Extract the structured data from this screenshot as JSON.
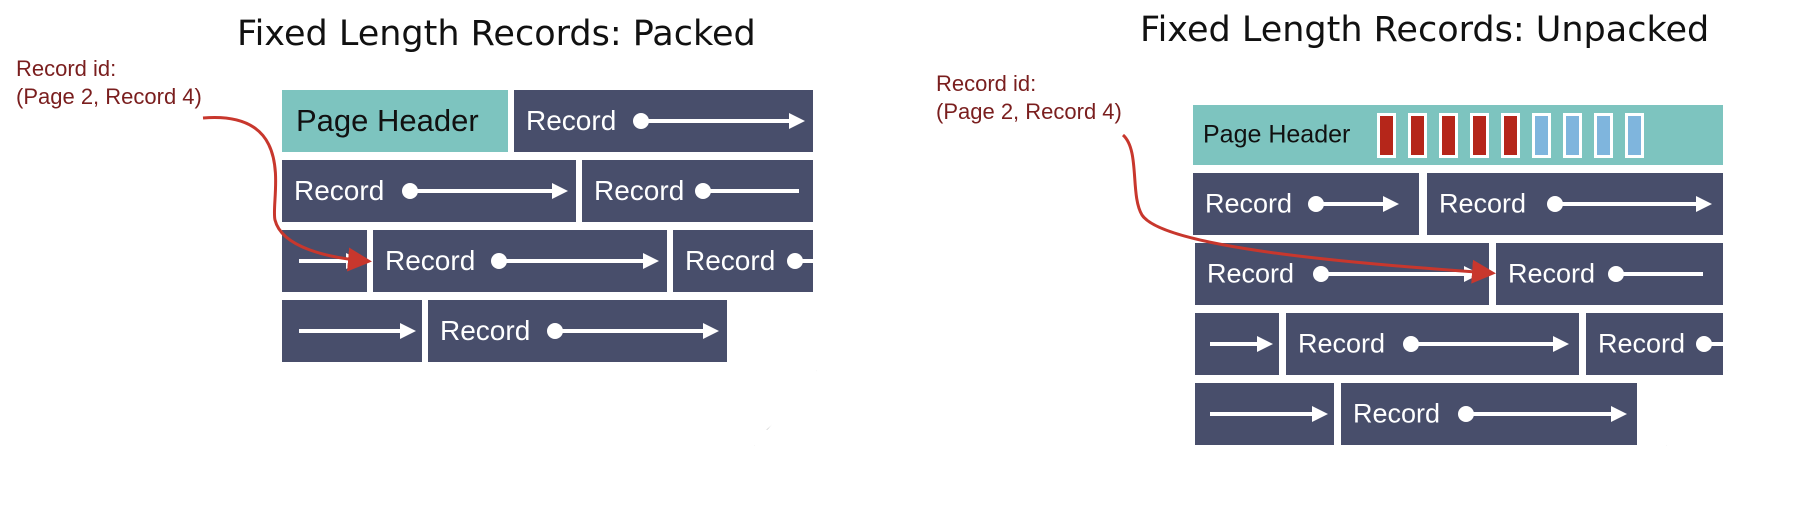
{
  "left": {
    "title": "Fixed Length Records: Packed",
    "record_id_line1": "Record id:",
    "record_id_line2": "(Page 2, Record 4)",
    "header_label": "Page Header",
    "record_label": "Record"
  },
  "right": {
    "title": "Fixed Length Records: Unpacked",
    "record_id_line1": "Record id:",
    "record_id_line2": "(Page 2, Record 4)",
    "header_label": "Page Header",
    "record_label": "Record",
    "bitmap": [
      1,
      1,
      1,
      1,
      1,
      0,
      0,
      0,
      0
    ]
  },
  "colors": {
    "record_fill": "#484e6b",
    "header_fill": "#7dc4bf",
    "bitmap_used": "#b5261a",
    "bitmap_free": "#7fb5dd",
    "pointer_arrow": "#c8372d",
    "record_id_text": "#7a1e1e"
  }
}
